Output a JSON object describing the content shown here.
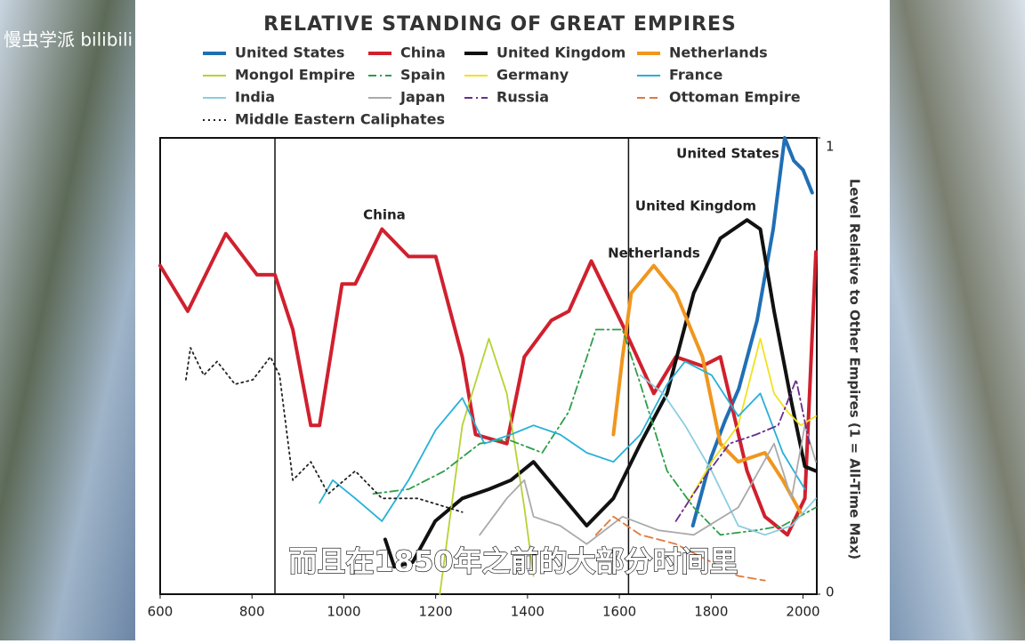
{
  "watermark": "慢虫学派 bilibili",
  "caption": "而且在1850年之前的大部分时间里",
  "chart_data": {
    "type": "line",
    "title": "RELATIVE STANDING OF GREAT EMPIRES",
    "y_axis_label": "Level Relative to Other Empires (1 = All-Time Max)",
    "xlim": [
      600,
      2030
    ],
    "ylim": [
      0,
      1
    ],
    "xticks": [
      600,
      800,
      1000,
      1200,
      1400,
      1600,
      1800,
      2000
    ],
    "yticks": [
      0,
      1
    ],
    "vlines": [
      850,
      1620
    ],
    "annotations": [
      "China",
      "United Kingdom",
      "Netherlands",
      "United States"
    ],
    "series": [
      {
        "name": "United States",
        "color": "#1f6fb5",
        "style": "solid",
        "linewidth": 4,
        "x": [
          1760,
          1800,
          1830,
          1860,
          1900,
          1935,
          1960,
          1980,
          2000,
          2020
        ],
        "values": [
          0.15,
          0.3,
          0.38,
          0.45,
          0.6,
          0.8,
          1.0,
          0.95,
          0.93,
          0.88
        ]
      },
      {
        "name": "China",
        "color": "#d0202e",
        "style": "solid",
        "linewidth": 4,
        "x": [
          600,
          660,
          743,
          811,
          850,
          889,
          928,
          947,
          996,
          1025,
          1083,
          1141,
          1200,
          1258,
          1287,
          1355,
          1393,
          1452,
          1490,
          1539,
          1607,
          1675,
          1723,
          1781,
          1820,
          1878,
          1917,
          1966,
          2004,
          2028
        ],
        "values": [
          0.72,
          0.62,
          0.79,
          0.7,
          0.7,
          0.58,
          0.37,
          0.37,
          0.68,
          0.68,
          0.8,
          0.74,
          0.74,
          0.52,
          0.35,
          0.33,
          0.52,
          0.6,
          0.62,
          0.73,
          0.59,
          0.44,
          0.52,
          0.5,
          0.52,
          0.27,
          0.17,
          0.13,
          0.21,
          0.75
        ]
      },
      {
        "name": "United Kingdom",
        "color": "#111111",
        "style": "solid",
        "linewidth": 4,
        "x": [
          1090,
          1110,
          1150,
          1199,
          1258,
          1316,
          1364,
          1413,
          1471,
          1529,
          1587,
          1646,
          1704,
          1762,
          1820,
          1878,
          1907,
          1937,
          1975,
          2004,
          2028
        ],
        "values": [
          0.12,
          0.06,
          0.07,
          0.16,
          0.21,
          0.23,
          0.25,
          0.29,
          0.22,
          0.15,
          0.21,
          0.33,
          0.44,
          0.66,
          0.78,
          0.82,
          0.8,
          0.62,
          0.42,
          0.28,
          0.27
        ]
      },
      {
        "name": "Netherlands",
        "color": "#f0961e",
        "style": "solid",
        "linewidth": 4,
        "x": [
          1587,
          1607,
          1626,
          1675,
          1723,
          1781,
          1820,
          1859,
          1917,
          1956,
          1994
        ],
        "values": [
          0.35,
          0.52,
          0.66,
          0.72,
          0.66,
          0.52,
          0.33,
          0.29,
          0.31,
          0.25,
          0.18
        ]
      },
      {
        "name": "Mongol Empire",
        "color": "#b5d334",
        "style": "solid",
        "linewidth": 1.8,
        "x": [
          1209,
          1258,
          1316,
          1355,
          1393,
          1413
        ],
        "values": [
          0.0,
          0.37,
          0.56,
          0.44,
          0.19,
          0.04
        ]
      },
      {
        "name": "Spain",
        "color": "#2e9e4a",
        "style": "dashdot",
        "linewidth": 1.8,
        "x": [
          1064,
          1141,
          1219,
          1296,
          1355,
          1432,
          1490,
          1549,
          1607,
          1646,
          1704,
          1762,
          1820,
          1898,
          1956,
          2028
        ],
        "values": [
          0.22,
          0.23,
          0.27,
          0.33,
          0.34,
          0.31,
          0.4,
          0.58,
          0.58,
          0.46,
          0.27,
          0.19,
          0.13,
          0.14,
          0.15,
          0.19
        ]
      },
      {
        "name": "Germany",
        "color": "#f2e21c",
        "style": "solid",
        "linewidth": 1.8,
        "x": [
          1743,
          1801,
          1859,
          1907,
          1937,
          1966,
          1995,
          2028
        ],
        "values": [
          0.19,
          0.29,
          0.37,
          0.56,
          0.44,
          0.4,
          0.37,
          0.39
        ]
      },
      {
        "name": "France",
        "color": "#27b1d6",
        "style": "solid",
        "linewidth": 1.8,
        "x": [
          947,
          976,
          1025,
          1083,
          1141,
          1200,
          1258,
          1306,
          1364,
          1413,
          1471,
          1529,
          1587,
          1646,
          1704,
          1743,
          1801,
          1859,
          1907,
          1956,
          2004
        ],
        "values": [
          0.2,
          0.25,
          0.21,
          0.16,
          0.25,
          0.36,
          0.43,
          0.33,
          0.35,
          0.37,
          0.35,
          0.31,
          0.29,
          0.35,
          0.46,
          0.51,
          0.48,
          0.39,
          0.44,
          0.31,
          0.23
        ]
      },
      {
        "name": "India",
        "color": "#8ccde0",
        "style": "solid",
        "linewidth": 1.8,
        "x": [
          1646,
          1695,
          1743,
          1801,
          1859,
          1917,
          1975,
          2028
        ],
        "values": [
          0.48,
          0.44,
          0.37,
          0.27,
          0.15,
          0.13,
          0.15,
          0.21
        ]
      },
      {
        "name": "Japan",
        "color": "#aaaaaa",
        "style": "solid",
        "linewidth": 1.8,
        "x": [
          1296,
          1355,
          1393,
          1413,
          1471,
          1529,
          1607,
          1685,
          1762,
          1859,
          1937,
          1975,
          2004,
          2028
        ],
        "values": [
          0.13,
          0.21,
          0.25,
          0.17,
          0.15,
          0.11,
          0.17,
          0.14,
          0.13,
          0.19,
          0.33,
          0.21,
          0.37,
          0.29
        ]
      },
      {
        "name": "Russia",
        "color": "#6a2d8f",
        "style": "dashdot",
        "linewidth": 1.8,
        "x": [
          1723,
          1781,
          1840,
          1898,
          1946,
          1985,
          2014
        ],
        "values": [
          0.16,
          0.25,
          0.33,
          0.35,
          0.37,
          0.47,
          0.33
        ]
      },
      {
        "name": "Ottoman Empire",
        "color": "#e07a3c",
        "style": "dashed",
        "linewidth": 1.8,
        "x": [
          1549,
          1587,
          1646,
          1723,
          1801,
          1859,
          1917
        ],
        "values": [
          0.13,
          0.17,
          0.13,
          0.11,
          0.07,
          0.04,
          0.03
        ]
      },
      {
        "name": "Middle Eastern Caliphates",
        "color": "#222222",
        "style": "dotted",
        "linewidth": 1.8,
        "x": [
          656,
          666,
          695,
          724,
          763,
          802,
          840,
          860,
          889,
          928,
          966,
          1025,
          1083,
          1161,
          1258
        ],
        "values": [
          0.47,
          0.54,
          0.48,
          0.51,
          0.46,
          0.47,
          0.52,
          0.48,
          0.25,
          0.29,
          0.22,
          0.27,
          0.21,
          0.21,
          0.18
        ]
      }
    ]
  }
}
